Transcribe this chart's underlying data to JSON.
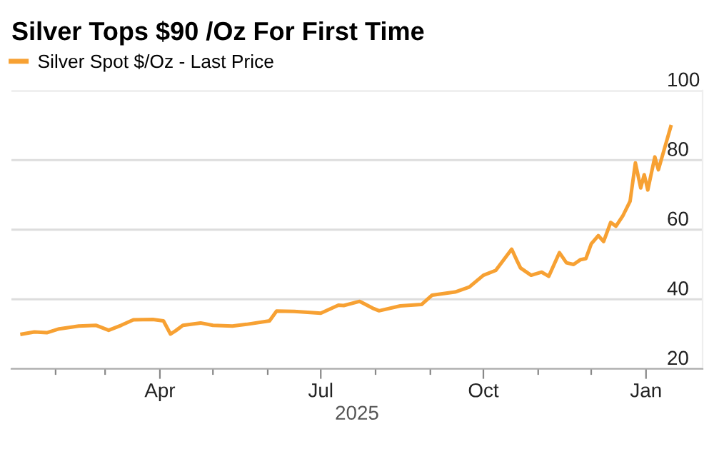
{
  "chart_data": {
    "type": "line",
    "title": "Silver Tops $90 /Oz For First Time",
    "xlabel": "2025",
    "legend": "top left",
    "grid": "y",
    "marker": "none",
    "line_style": "solid",
    "xlim": [
      "2025-01-07",
      "2026-02-02"
    ],
    "xticks": [
      {
        "value": "2025-02-01",
        "label": null
      },
      {
        "value": "2025-03-01",
        "label": null
      },
      {
        "value": "2025-04-01",
        "label": "Apr"
      },
      {
        "value": "2025-05-01",
        "label": null
      },
      {
        "value": "2025-06-01",
        "label": null
      },
      {
        "value": "2025-07-01",
        "label": "Jul"
      },
      {
        "value": "2025-08-01",
        "label": null
      },
      {
        "value": "2025-09-01",
        "label": null
      },
      {
        "value": "2025-10-01",
        "label": "Oct"
      },
      {
        "value": "2025-11-01",
        "label": null
      },
      {
        "value": "2025-12-01",
        "label": null
      },
      {
        "value": "2026-01-01",
        "label": "Jan"
      }
    ],
    "ylim": [
      20,
      100
    ],
    "yticks": [
      20,
      40,
      60,
      80,
      100
    ],
    "series": [
      {
        "name": "Silver Spot $/Oz - Last Price",
        "color": "#f7a133",
        "x": [
          "2025-01-13",
          "2025-01-20",
          "2025-01-27",
          "2025-02-03",
          "2025-02-10",
          "2025-02-14",
          "2025-02-24",
          "2025-03-03",
          "2025-03-10",
          "2025-03-17",
          "2025-03-28",
          "2025-04-03",
          "2025-04-07",
          "2025-04-10",
          "2025-04-14",
          "2025-04-24",
          "2025-05-01",
          "2025-05-12",
          "2025-05-20",
          "2025-06-02",
          "2025-06-06",
          "2025-06-16",
          "2025-07-01",
          "2025-07-11",
          "2025-07-14",
          "2025-07-23",
          "2025-07-31",
          "2025-08-03",
          "2025-08-15",
          "2025-08-27",
          "2025-09-02",
          "2025-09-15",
          "2025-09-23",
          "2025-10-01",
          "2025-10-08",
          "2025-10-13",
          "2025-10-17",
          "2025-10-20",
          "2025-10-22",
          "2025-10-28",
          "2025-11-03",
          "2025-11-07",
          "2025-11-13",
          "2025-11-17",
          "2025-11-21",
          "2025-11-25",
          "2025-11-28",
          "2025-12-01",
          "2025-12-05",
          "2025-12-08",
          "2025-12-12",
          "2025-12-15",
          "2025-12-19",
          "2025-12-23",
          "2025-12-26",
          "2025-12-29",
          "2025-12-31",
          "2026-01-02",
          "2026-01-06",
          "2026-01-08",
          "2026-01-15"
        ],
        "values": [
          30.0,
          30.6,
          30.4,
          31.5,
          32.0,
          32.3,
          32.5,
          31.1,
          32.5,
          34.1,
          34.2,
          33.8,
          30.0,
          31.0,
          32.5,
          33.2,
          32.5,
          32.3,
          32.8,
          33.8,
          36.6,
          36.5,
          36.0,
          38.3,
          38.2,
          39.4,
          37.3,
          36.7,
          38.1,
          38.5,
          41.2,
          42.1,
          43.5,
          46.9,
          48.3,
          51.7,
          54.4,
          51.1,
          49.0,
          46.9,
          47.8,
          46.6,
          53.4,
          50.5,
          50.0,
          51.4,
          51.7,
          55.9,
          58.3,
          56.6,
          62.1,
          61.0,
          64.1,
          68.2,
          79.2,
          72.0,
          75.8,
          71.4,
          80.9,
          77.2,
          89.6
        ]
      }
    ]
  }
}
